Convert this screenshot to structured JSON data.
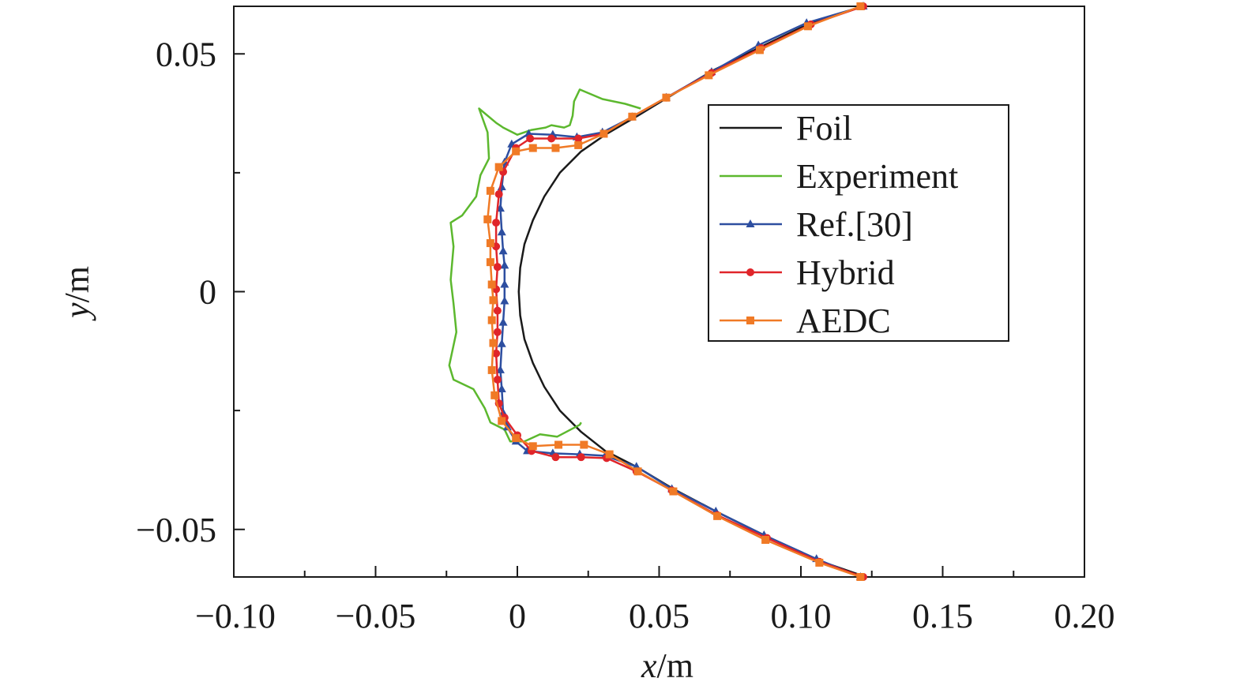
{
  "chart_data": {
    "type": "line",
    "title": "",
    "xlabel": {
      "italic": "x",
      "unit": "/m"
    },
    "ylabel": {
      "italic": "y",
      "unit": "/m"
    },
    "xlim": [
      -0.1,
      0.2
    ],
    "ylim": [
      -0.06,
      0.06
    ],
    "xticks": [
      -0.1,
      -0.05,
      0,
      0.05,
      0.1,
      0.15,
      0.2
    ],
    "xtick_labels": [
      "−0.10",
      "−0.05",
      "0",
      "0.05",
      "0.10",
      "0.15",
      "0.20"
    ],
    "yticks": [
      0.05,
      0,
      -0.05
    ],
    "ytick_labels": [
      "0.05",
      "0",
      "−0.05"
    ],
    "grid": false,
    "legend_position": "upper-right",
    "series": [
      {
        "name": "Foil",
        "color": "#1a1a1a",
        "marker": "none",
        "points": [
          [
            0.122,
            0.06
          ],
          [
            0.1035,
            0.0565
          ],
          [
            0.086,
            0.0515
          ],
          [
            0.069,
            0.0465
          ],
          [
            0.0535,
            0.041
          ],
          [
            0.0425,
            0.037
          ],
          [
            0.031,
            0.033
          ],
          [
            0.0225,
            0.0295
          ],
          [
            0.015,
            0.025
          ],
          [
            0.0095,
            0.02
          ],
          [
            0.0055,
            0.015
          ],
          [
            0.0025,
            0.01
          ],
          [
            0.001,
            0.005
          ],
          [
            0.0005,
            0
          ],
          [
            0.001,
            -0.005
          ],
          [
            0.0025,
            -0.01
          ],
          [
            0.0055,
            -0.015
          ],
          [
            0.0095,
            -0.02
          ],
          [
            0.015,
            -0.025
          ],
          [
            0.0225,
            -0.0295
          ],
          [
            0.031,
            -0.0335
          ],
          [
            0.0425,
            -0.037
          ],
          [
            0.055,
            -0.0415
          ],
          [
            0.071,
            -0.0465
          ],
          [
            0.088,
            -0.0515
          ],
          [
            0.106,
            -0.0565
          ],
          [
            0.123,
            -0.06
          ]
        ]
      },
      {
        "name": "Experiment",
        "color": "#5cb82e",
        "marker": "none",
        "points": [
          [
            0.0435,
            0.0385
          ],
          [
            0.038,
            0.0395
          ],
          [
            0.03,
            0.0405
          ],
          [
            0.022,
            0.0425
          ],
          [
            0.02,
            0.04
          ],
          [
            0.0195,
            0.037
          ],
          [
            0.0185,
            0.035
          ],
          [
            0.0165,
            0.0345
          ],
          [
            0.012,
            0.035
          ],
          [
            0.01,
            0.0345
          ],
          [
            0.005,
            0.034
          ],
          [
            0.0,
            0.033
          ],
          [
            -0.005,
            0.0345
          ],
          [
            -0.0075,
            0.0355
          ],
          [
            -0.0135,
            0.0385
          ],
          [
            -0.0105,
            0.0335
          ],
          [
            -0.01,
            0.028
          ],
          [
            -0.013,
            0.0245
          ],
          [
            -0.0145,
            0.02
          ],
          [
            -0.0195,
            0.016
          ],
          [
            -0.0235,
            0.0145
          ],
          [
            -0.0225,
            0.0095
          ],
          [
            -0.0235,
            0.0025
          ],
          [
            -0.0225,
            -0.0025
          ],
          [
            -0.0215,
            -0.0085
          ],
          [
            -0.024,
            -0.0155
          ],
          [
            -0.0225,
            -0.0185
          ],
          [
            -0.0155,
            -0.0205
          ],
          [
            -0.0115,
            -0.0245
          ],
          [
            -0.0095,
            -0.0275
          ],
          [
            -0.0045,
            -0.029
          ],
          [
            -0.0025,
            -0.0315
          ],
          [
            0.0025,
            -0.0315
          ],
          [
            0.008,
            -0.03
          ],
          [
            0.014,
            -0.0305
          ],
          [
            0.022,
            -0.028
          ],
          [
            0.0225,
            -0.0275
          ]
        ]
      },
      {
        "name": "Ref.[30]",
        "color": "#2d4ea0",
        "marker": "triangle",
        "points": [
          [
            0.122,
            0.06
          ],
          [
            0.102,
            0.0565
          ],
          [
            0.085,
            0.0518
          ],
          [
            0.0685,
            0.0462
          ],
          [
            0.0525,
            0.0408
          ],
          [
            0.0405,
            0.0367
          ],
          [
            0.03,
            0.0335
          ],
          [
            0.021,
            0.0325
          ],
          [
            0.0125,
            0.033
          ],
          [
            0.004,
            0.0332
          ],
          [
            -0.002,
            0.031
          ],
          [
            -0.0045,
            0.0272
          ],
          [
            -0.0055,
            0.022
          ],
          [
            -0.006,
            0.0175
          ],
          [
            -0.0055,
            0.0125
          ],
          [
            -0.005,
            0.0085
          ],
          [
            -0.0045,
            0.0055
          ],
          [
            -0.0045,
            0.0015
          ],
          [
            -0.0045,
            -0.002
          ],
          [
            -0.005,
            -0.0065
          ],
          [
            -0.0055,
            -0.011
          ],
          [
            -0.006,
            -0.0165
          ],
          [
            -0.0055,
            -0.0205
          ],
          [
            -0.005,
            -0.0255
          ],
          [
            -0.0035,
            -0.0285
          ],
          [
            -0.0005,
            -0.0315
          ],
          [
            0.0035,
            -0.0335
          ],
          [
            0.0125,
            -0.034
          ],
          [
            0.022,
            -0.0342
          ],
          [
            0.031,
            -0.0345
          ],
          [
            0.042,
            -0.0368
          ],
          [
            0.0545,
            -0.0415
          ],
          [
            0.07,
            -0.0462
          ],
          [
            0.087,
            -0.0512
          ],
          [
            0.1055,
            -0.0562
          ],
          [
            0.121,
            -0.06
          ]
        ]
      },
      {
        "name": "Hybrid",
        "color": "#e0252a",
        "marker": "circle",
        "points": [
          [
            0.122,
            0.06
          ],
          [
            0.1035,
            0.0562
          ],
          [
            0.086,
            0.0512
          ],
          [
            0.0685,
            0.046
          ],
          [
            0.0525,
            0.0408
          ],
          [
            0.0405,
            0.0368
          ],
          [
            0.0305,
            0.0332
          ],
          [
            0.0215,
            0.0322
          ],
          [
            0.012,
            0.0322
          ],
          [
            0.0045,
            0.0322
          ],
          [
            -0.0005,
            0.0302
          ],
          [
            -0.005,
            0.0252
          ],
          [
            -0.0065,
            0.0205
          ],
          [
            -0.0075,
            0.0145
          ],
          [
            -0.0075,
            0.0095
          ],
          [
            -0.007,
            0.0052
          ],
          [
            -0.0075,
            0.0005
          ],
          [
            -0.007,
            -0.004
          ],
          [
            -0.007,
            -0.0085
          ],
          [
            -0.0075,
            -0.013
          ],
          [
            -0.007,
            -0.0185
          ],
          [
            -0.0065,
            -0.0235
          ],
          [
            -0.0045,
            -0.0265
          ],
          [
            0.0,
            -0.0302
          ],
          [
            0.005,
            -0.0335
          ],
          [
            0.0135,
            -0.0348
          ],
          [
            0.0225,
            -0.0348
          ],
          [
            0.0315,
            -0.035
          ],
          [
            0.042,
            -0.0378
          ],
          [
            0.0545,
            -0.0418
          ],
          [
            0.0705,
            -0.047
          ],
          [
            0.088,
            -0.0518
          ],
          [
            0.1065,
            -0.0568
          ],
          [
            0.122,
            -0.06
          ]
        ]
      },
      {
        "name": "AEDC",
        "color": "#f07a26",
        "marker": "square",
        "points": [
          [
            0.121,
            0.06
          ],
          [
            0.1025,
            0.0558
          ],
          [
            0.0855,
            0.0508
          ],
          [
            0.0675,
            0.0455
          ],
          [
            0.0525,
            0.0408
          ],
          [
            0.0405,
            0.0368
          ],
          [
            0.0305,
            0.0332
          ],
          [
            0.0215,
            0.0308
          ],
          [
            0.0135,
            0.0302
          ],
          [
            0.0055,
            0.0302
          ],
          [
            -0.0005,
            0.0295
          ],
          [
            -0.0065,
            0.0262
          ],
          [
            -0.0095,
            0.0212
          ],
          [
            -0.0105,
            0.0152
          ],
          [
            -0.0095,
            0.0102
          ],
          [
            -0.0095,
            0.0062
          ],
          [
            -0.009,
            0.0015
          ],
          [
            -0.0085,
            -0.0018
          ],
          [
            -0.009,
            -0.006
          ],
          [
            -0.0085,
            -0.0108
          ],
          [
            -0.009,
            -0.0165
          ],
          [
            -0.008,
            -0.0218
          ],
          [
            -0.0055,
            -0.0272
          ],
          [
            -0.0005,
            -0.0308
          ],
          [
            0.0055,
            -0.0325
          ],
          [
            0.0145,
            -0.0322
          ],
          [
            0.0235,
            -0.0322
          ],
          [
            0.0325,
            -0.0342
          ],
          [
            0.0425,
            -0.0378
          ],
          [
            0.055,
            -0.042
          ],
          [
            0.0705,
            -0.0472
          ],
          [
            0.0875,
            -0.0522
          ],
          [
            0.1065,
            -0.057
          ],
          [
            0.121,
            -0.06
          ]
        ]
      }
    ]
  }
}
